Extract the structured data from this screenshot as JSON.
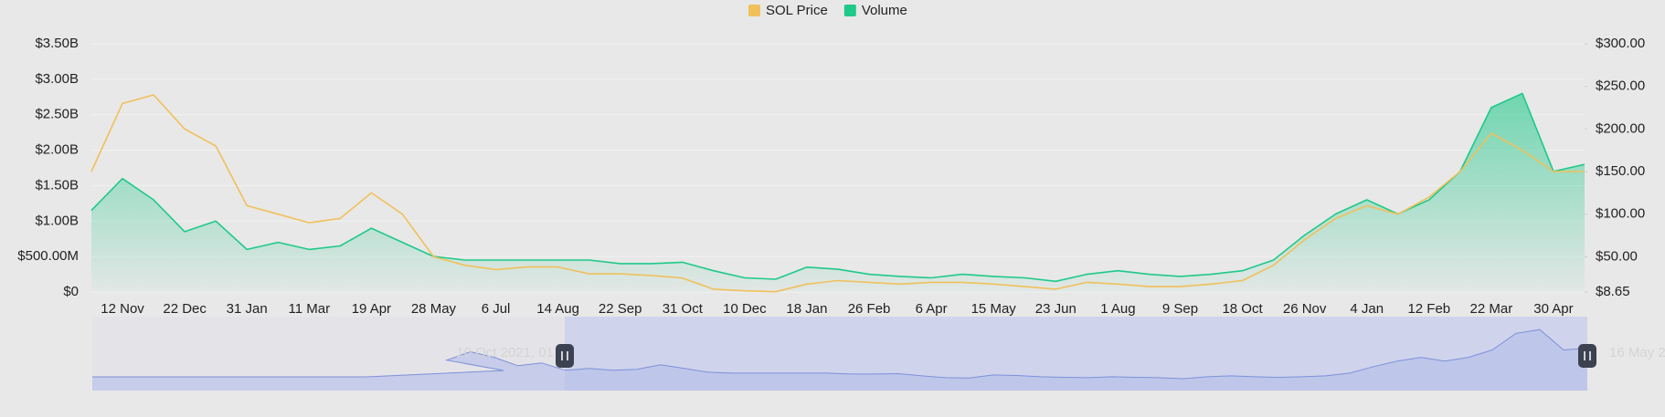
{
  "chart_data": {
    "type": "line",
    "legend": "top",
    "grid": true,
    "categories": [
      null,
      "12 Nov",
      null,
      "22 Dec",
      null,
      "31 Jan",
      null,
      "11 Mar",
      null,
      "19 Apr",
      null,
      "28 May",
      null,
      "6 Jul",
      null,
      "14 Aug",
      null,
      "22 Sep",
      null,
      "31 Oct",
      null,
      "10 Dec",
      null,
      "18 Jan",
      null,
      "26 Feb",
      null,
      "6 Apr",
      null,
      "15 May",
      null,
      "23 Jun",
      null,
      "1 Aug",
      null,
      "9 Sep",
      null,
      "18 Oct",
      null,
      "26 Nov",
      null,
      "4 Jan",
      null,
      "12 Feb",
      null,
      "22 Mar",
      null,
      "30 Apr",
      null
    ],
    "series": [
      {
        "name": "SOL Price",
        "color": "#f0c05a",
        "axis": "y2",
        "values": [
          150,
          230,
          240,
          200,
          180,
          110,
          100,
          90,
          95,
          125,
          100,
          50,
          40,
          35,
          38,
          38,
          30,
          30,
          28,
          25,
          12,
          10,
          9,
          18,
          22,
          20,
          18,
          20,
          20,
          18,
          15,
          12,
          20,
          18,
          15,
          15,
          18,
          22,
          40,
          70,
          95,
          110,
          100,
          120,
          150,
          195,
          175,
          150,
          150
        ]
      },
      {
        "name": "Volume",
        "color": "#1ec98a",
        "values": [
          1150000000,
          1600000000,
          1300000000,
          850000000,
          1000000000,
          600000000,
          700000000,
          600000000,
          650000000,
          900000000,
          700000000,
          500000000,
          450000000,
          450000000,
          450000000,
          450000000,
          450000000,
          400000000,
          400000000,
          420000000,
          300000000,
          200000000,
          180000000,
          350000000,
          320000000,
          250000000,
          220000000,
          200000000,
          250000000,
          220000000,
          200000000,
          150000000,
          250000000,
          300000000,
          250000000,
          220000000,
          250000000,
          300000000,
          450000000,
          800000000,
          1100000000,
          1300000000,
          1100000000,
          1300000000,
          1700000000,
          2600000000,
          2800000000,
          1700000000,
          1800000000
        ]
      }
    ],
    "ylim": [
      0,
      3500000000
    ],
    "yticks": [
      {
        "value": 0,
        "label": "$0"
      },
      {
        "value": 500000000,
        "label": "$500.00M"
      },
      {
        "value": 1000000000,
        "label": "$1.00B"
      },
      {
        "value": 1500000000,
        "label": "$1.50B"
      },
      {
        "value": 2000000000,
        "label": "$2.00B"
      },
      {
        "value": 2500000000,
        "label": "$2.50B"
      },
      {
        "value": 3000000000,
        "label": "$3.00B"
      },
      {
        "value": 3500000000,
        "label": "$3.50B"
      }
    ],
    "y2lim": [
      8.65,
      300
    ],
    "y2ticks": [
      {
        "value": 8.65,
        "label": "$8.65"
      },
      {
        "value": 50,
        "label": "$50.00"
      },
      {
        "value": 100,
        "label": "$100.00"
      },
      {
        "value": 150,
        "label": "$150.00"
      },
      {
        "value": 200,
        "label": "$200.00"
      },
      {
        "value": 250,
        "label": "$250.00"
      },
      {
        "value": 300,
        "label": "$300.00"
      }
    ],
    "slider_labels": [
      "10 Oct 2021, 01",
      "16 May 2"
    ]
  }
}
